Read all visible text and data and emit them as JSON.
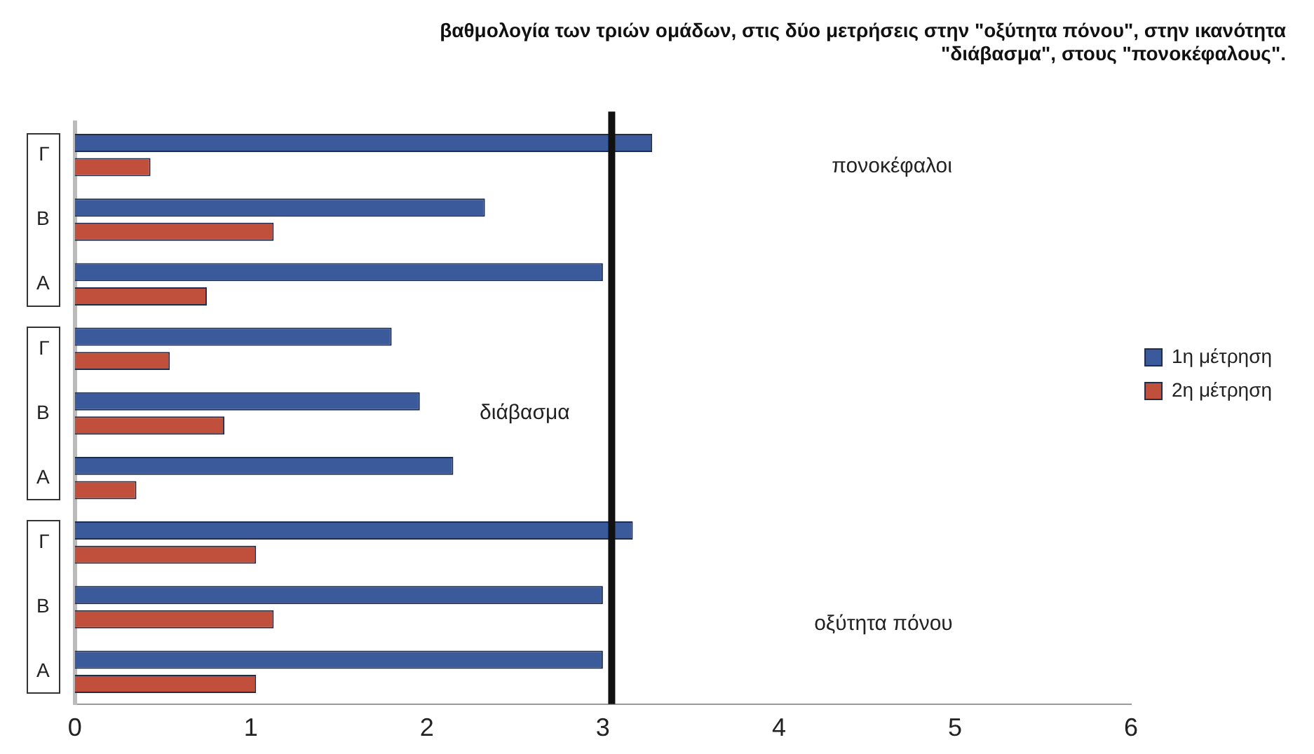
{
  "chart_data": {
    "type": "bar",
    "orientation": "horizontal",
    "title": "βαθμολογία των τριών ομάδων, στις δύο μετρήσεις στην \"οξύτητα πόνου\", στην ικανότητα\n\"διάβασμα\", στους \"πονοκέφαλους\".",
    "categories": [
      "Γ",
      "Β",
      "Α",
      "Γ",
      "Β",
      "Α",
      "Γ",
      "Β",
      "Α"
    ],
    "series": [
      {
        "name": "1η μέτρηση",
        "color": "#3a5a9c",
        "values": [
          3.28,
          2.33,
          3.0,
          1.8,
          1.96,
          2.15,
          3.17,
          3.0,
          3.0
        ]
      },
      {
        "name": "2η μέτρηση",
        "color": "#c0503c",
        "values": [
          0.43,
          1.13,
          0.75,
          0.54,
          0.85,
          0.35,
          1.03,
          1.13,
          1.03
        ]
      }
    ],
    "xlim": [
      0,
      6
    ],
    "xticks": [
      0,
      1,
      2,
      3,
      4,
      5,
      6
    ],
    "grid": false,
    "legend": "right",
    "ref_lines": [
      {
        "axis": "x",
        "value": 3.05,
        "color": "#111111"
      }
    ],
    "annotations": [
      "πονοκέφαλοι",
      "διάβασμα",
      "οξύτητα πόνου"
    ]
  }
}
